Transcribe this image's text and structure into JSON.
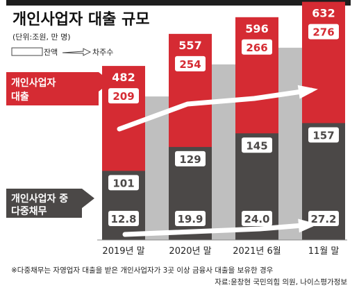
{
  "header": {
    "title": "개인사업자 대출 규모",
    "unit": "(단위:조원, 만 명)",
    "legend_balance": "잔액",
    "legend_borrowers": "차주수"
  },
  "labels": {
    "group_total": [
      "개인사업자",
      "대출"
    ],
    "group_multi": [
      "개인사업자 중",
      "다중채무"
    ]
  },
  "footer": {
    "note": "※다중채무는 자영업자 대출을 받은 개인사업자가 3곳 이상 금융사 대출을 보유한 경우",
    "source": "자료:윤창현 국민의힘 의원, 나이스평가정보"
  },
  "colors": {
    "red": "#d52b33",
    "dark": "#4b4847",
    "gray_band": "#bfbfbf",
    "text": "#222222"
  },
  "chart_data": {
    "type": "bar",
    "categories": [
      "2019년 말",
      "2020년 말",
      "2021년 6월",
      "11월 말"
    ],
    "series": [
      {
        "name": "개인사업자 대출 잔액",
        "values": [
          482,
          557,
          596,
          632
        ],
        "unit": "조원"
      },
      {
        "name": "개인사업자 대출 차주수",
        "values": [
          209,
          254,
          266,
          276
        ],
        "unit": "만 명"
      },
      {
        "name": "다중채무 잔액",
        "values": [
          101,
          129,
          145,
          157
        ],
        "unit": "조원"
      },
      {
        "name": "다중채무 차주수",
        "values": [
          12.8,
          19.9,
          24.0,
          27.2
        ],
        "unit": "만 명"
      }
    ],
    "value_labels": {
      "total_balance": [
        "482",
        "557",
        "596",
        "632"
      ],
      "total_borrowers": [
        "209",
        "254",
        "266",
        "276"
      ],
      "multi_balance": [
        "101",
        "129",
        "145",
        "157"
      ],
      "multi_borrowers": [
        "12.8",
        "19.9",
        "24.0",
        "27.2"
      ]
    }
  }
}
